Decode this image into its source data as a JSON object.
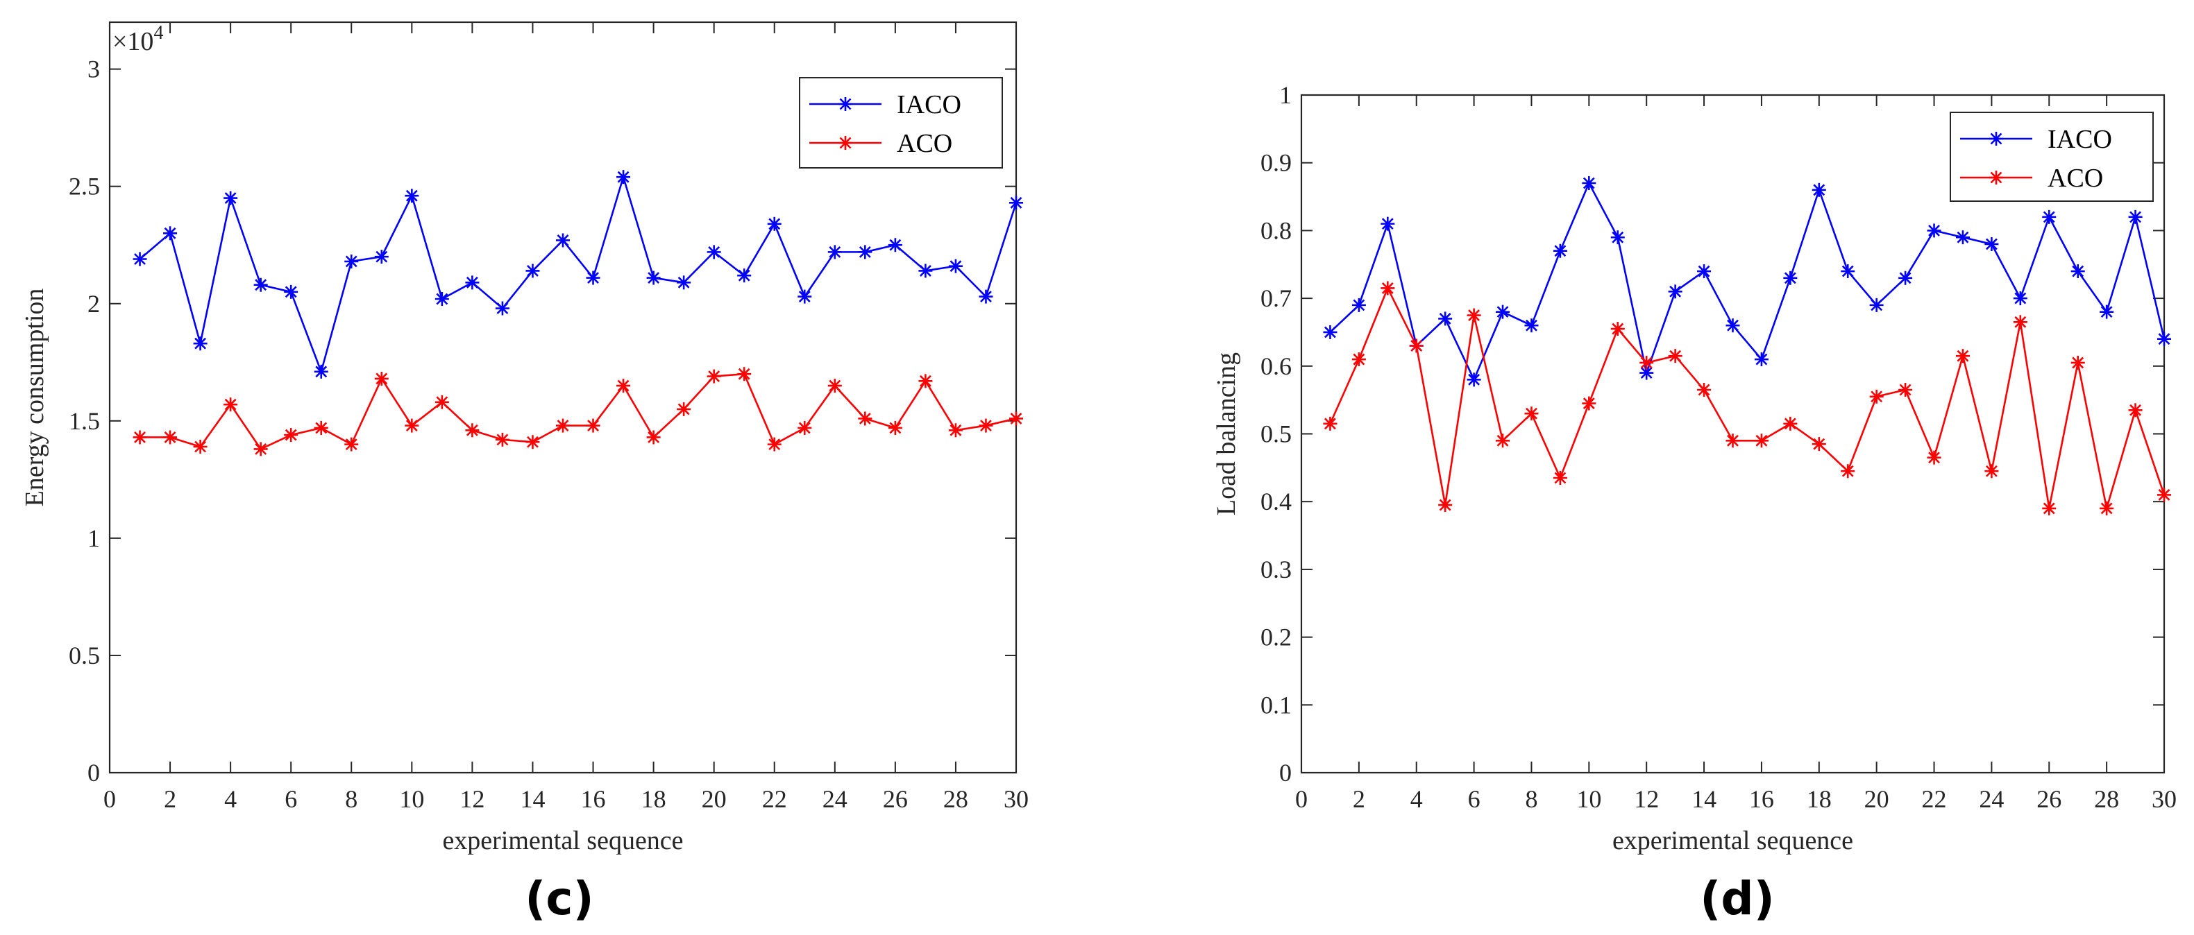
{
  "chart_data": [
    {
      "type": "line",
      "panel_label": "(c)",
      "xlabel": "experimental sequence",
      "ylabel": "Energy consumption",
      "y_exponent_base": "×10",
      "y_exponent_power": "4",
      "xlim": [
        0,
        30
      ],
      "ylim": [
        0,
        3.2
      ],
      "xticks": [
        0,
        2,
        4,
        6,
        8,
        10,
        12,
        14,
        16,
        18,
        20,
        22,
        24,
        26,
        28,
        30
      ],
      "yticks": [
        0,
        0.5,
        1,
        1.5,
        2,
        2.5,
        3
      ],
      "ytick_labels": [
        "0",
        "0.5",
        "1",
        "1.5",
        "2",
        "2.5",
        "3"
      ],
      "legend_position": "top-right",
      "x": [
        1,
        2,
        3,
        4,
        5,
        6,
        7,
        8,
        9,
        10,
        11,
        12,
        13,
        14,
        15,
        16,
        17,
        18,
        19,
        20,
        21,
        22,
        23,
        24,
        25,
        26,
        27,
        28,
        29,
        30
      ],
      "series": [
        {
          "name": "IACO",
          "color": "#0000ff",
          "values": [
            2.19,
            2.3,
            1.83,
            2.45,
            2.08,
            2.05,
            1.71,
            2.18,
            2.2,
            2.46,
            2.02,
            2.09,
            1.98,
            2.14,
            2.27,
            2.11,
            2.54,
            2.11,
            2.09,
            2.22,
            2.12,
            2.34,
            2.03,
            2.22,
            2.22,
            2.25,
            2.14,
            2.16,
            2.03,
            2.43
          ]
        },
        {
          "name": "ACO",
          "color": "#ff0000",
          "values": [
            1.43,
            1.43,
            1.39,
            1.57,
            1.38,
            1.44,
            1.47,
            1.4,
            1.68,
            1.48,
            1.58,
            1.46,
            1.42,
            1.41,
            1.48,
            1.48,
            1.65,
            1.43,
            1.55,
            1.69,
            1.7,
            1.4,
            1.47,
            1.65,
            1.51,
            1.47,
            1.67,
            1.46,
            1.48,
            1.51
          ]
        }
      ]
    },
    {
      "type": "line",
      "panel_label": "(d)",
      "xlabel": "experimental sequence",
      "ylabel": "Load balancing",
      "xlim": [
        0,
        30
      ],
      "ylim": [
        0,
        1
      ],
      "xticks": [
        0,
        2,
        4,
        6,
        8,
        10,
        12,
        14,
        16,
        18,
        20,
        22,
        24,
        26,
        28,
        30
      ],
      "yticks": [
        0,
        0.1,
        0.2,
        0.3,
        0.4,
        0.5,
        0.6,
        0.7,
        0.8,
        0.9,
        1
      ],
      "ytick_labels": [
        "0",
        "0.1",
        "0.2",
        "0.3",
        "0.4",
        "0.5",
        "0.6",
        "0.7",
        "0.8",
        "0.9",
        "1"
      ],
      "legend_position": "top-right",
      "x": [
        1,
        2,
        3,
        4,
        5,
        6,
        7,
        8,
        9,
        10,
        11,
        12,
        13,
        14,
        15,
        16,
        17,
        18,
        19,
        20,
        21,
        22,
        23,
        24,
        25,
        26,
        27,
        28,
        29,
        30
      ],
      "series": [
        {
          "name": "IACO",
          "color": "#0000ff",
          "values": [
            0.65,
            0.69,
            0.81,
            0.63,
            0.67,
            0.58,
            0.68,
            0.66,
            0.77,
            0.87,
            0.79,
            0.59,
            0.71,
            0.74,
            0.66,
            0.61,
            0.73,
            0.86,
            0.74,
            0.69,
            0.73,
            0.8,
            0.79,
            0.78,
            0.7,
            0.82,
            0.74,
            0.68,
            0.82,
            0.64
          ]
        },
        {
          "name": "ACO",
          "color": "#ff0000",
          "values": [
            0.515,
            0.61,
            0.715,
            0.63,
            0.395,
            0.675,
            0.49,
            0.53,
            0.435,
            0.545,
            0.655,
            0.605,
            0.615,
            0.565,
            0.49,
            0.49,
            0.515,
            0.485,
            0.445,
            0.555,
            0.565,
            0.465,
            0.615,
            0.445,
            0.665,
            0.39,
            0.605,
            0.39,
            0.535,
            0.41
          ]
        }
      ]
    }
  ]
}
